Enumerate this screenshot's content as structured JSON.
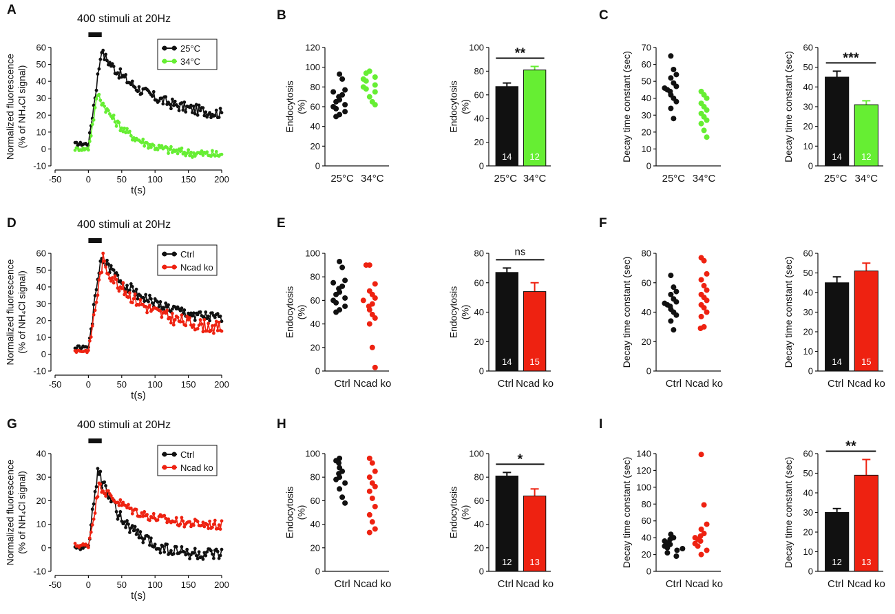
{
  "colors": {
    "black": "#111111",
    "green": "#66ee33",
    "red": "#ee2211"
  },
  "chart_data": [
    {
      "id": "A",
      "type": "line",
      "title": "400 stimuli at 20Hz",
      "xlabel": "t(s)",
      "ylabel": [
        "Normalized fluorescence",
        "(% of NH₄Cl signal)"
      ],
      "xlim": [
        -50,
        200
      ],
      "ylim": [
        -10,
        60
      ],
      "xticks": [
        -50,
        0,
        50,
        100,
        150,
        200
      ],
      "yticks": [
        -10,
        0,
        10,
        20,
        30,
        40,
        50,
        60
      ],
      "stim_bar": [
        0,
        20
      ],
      "legend": "top-right",
      "series": [
        {
          "name": "25°C",
          "color": "#111111",
          "peak": 60,
          "tpeak": 20,
          "baseline": 3,
          "end": 18,
          "tau": 70,
          "noise": 3.2
        },
        {
          "name": "34°C",
          "color": "#66ee33",
          "peak": 35,
          "tpeak": 15,
          "baseline": 0,
          "end": -4,
          "tau": 45,
          "noise": 2.5
        }
      ]
    },
    {
      "id": "B1",
      "type": "scatter",
      "ylabel": [
        "Endocytosis",
        "(%)"
      ],
      "ylim": [
        0,
        120
      ],
      "yticks": [
        0,
        20,
        40,
        60,
        80,
        100,
        120
      ],
      "categories": [
        "25°C",
        "34°C"
      ],
      "series": [
        {
          "name": "25°C",
          "color": "#111111",
          "values": [
            93,
            88,
            77,
            75,
            72,
            70,
            67,
            65,
            62,
            60,
            58,
            55,
            52,
            50
          ]
        },
        {
          "name": "34°C",
          "color": "#66ee33",
          "values": [
            96,
            94,
            90,
            88,
            86,
            82,
            80,
            78,
            75,
            70,
            65,
            62
          ]
        }
      ]
    },
    {
      "id": "B2",
      "type": "bar",
      "ylabel": [
        "Endocytosis",
        "(%)"
      ],
      "ylim": [
        0,
        100
      ],
      "yticks": [
        0,
        20,
        40,
        60,
        80,
        100
      ],
      "categories": [
        "25°C",
        "34°C"
      ],
      "values": [
        67,
        81
      ],
      "errors": [
        3,
        3
      ],
      "n": [
        "14",
        "12"
      ],
      "colors": [
        "#111111",
        "#66ee33"
      ],
      "significance": "**"
    },
    {
      "id": "C1",
      "type": "scatter",
      "ylabel": [
        "Decay time constant (sec)"
      ],
      "ylim": [
        0,
        70
      ],
      "yticks": [
        0,
        10,
        20,
        30,
        40,
        50,
        60,
        70
      ],
      "categories": [
        "25°C",
        "34°C"
      ],
      "series": [
        {
          "name": "25°C",
          "color": "#111111",
          "values": [
            65,
            57,
            54,
            52,
            49,
            47,
            46,
            45,
            44,
            42,
            40,
            38,
            34,
            28
          ]
        },
        {
          "name": "34°C",
          "color": "#66ee33",
          "values": [
            44,
            42,
            40,
            37,
            35,
            33,
            31,
            29,
            27,
            25,
            21,
            17
          ]
        }
      ]
    },
    {
      "id": "C2",
      "type": "bar",
      "ylabel": [
        "Decay time constant (sec)"
      ],
      "ylim": [
        0,
        60
      ],
      "yticks": [
        0,
        10,
        20,
        30,
        40,
        50,
        60
      ],
      "categories": [
        "25°C",
        "34°C"
      ],
      "values": [
        45,
        31
      ],
      "errors": [
        3,
        2
      ],
      "n": [
        "14",
        "12"
      ],
      "colors": [
        "#111111",
        "#66ee33"
      ],
      "significance": "***"
    },
    {
      "id": "D",
      "type": "line",
      "title": "400 stimuli at 20Hz",
      "xlabel": "t(s)",
      "ylabel": [
        "Normalized fluorescence",
        "(% of NH₄Cl signal)"
      ],
      "xlim": [
        -50,
        200
      ],
      "ylim": [
        -10,
        60
      ],
      "xticks": [
        -50,
        0,
        50,
        100,
        150,
        200
      ],
      "yticks": [
        -10,
        0,
        10,
        20,
        30,
        40,
        50,
        60
      ],
      "stim_bar": [
        0,
        20
      ],
      "legend": "top-right",
      "series": [
        {
          "name": "Ctrl",
          "color": "#111111",
          "peak": 60,
          "tpeak": 20,
          "baseline": 4,
          "end": 18,
          "tau": 70,
          "noise": 3.2
        },
        {
          "name": "Ncad ko",
          "color": "#ee2211",
          "peak": 57,
          "tpeak": 22,
          "baseline": 2,
          "end": 13,
          "tau": 65,
          "noise": 3.8
        }
      ]
    },
    {
      "id": "E1",
      "type": "scatter",
      "ylabel": [
        "Endocytosis",
        "(%)"
      ],
      "ylim": [
        0,
        100
      ],
      "yticks": [
        0,
        20,
        40,
        60,
        80,
        100
      ],
      "categories": [
        "Ctrl",
        "Ncad ko"
      ],
      "series": [
        {
          "name": "Ctrl",
          "color": "#111111",
          "values": [
            93,
            88,
            77,
            75,
            72,
            70,
            67,
            65,
            62,
            60,
            58,
            55,
            52,
            50
          ]
        },
        {
          "name": "Ncad ko",
          "color": "#ee2211",
          "values": [
            90,
            90,
            74,
            68,
            65,
            62,
            60,
            57,
            55,
            52,
            48,
            45,
            40,
            20,
            3
          ]
        }
      ]
    },
    {
      "id": "E2",
      "type": "bar",
      "ylabel": [
        "Endocytosis",
        "(%)"
      ],
      "ylim": [
        0,
        80
      ],
      "yticks": [
        0,
        20,
        40,
        60,
        80
      ],
      "categories": [
        "Ctrl",
        "Ncad ko"
      ],
      "values": [
        67,
        54
      ],
      "errors": [
        3,
        6
      ],
      "n": [
        "14",
        "15"
      ],
      "colors": [
        "#111111",
        "#ee2211"
      ],
      "significance": "ns"
    },
    {
      "id": "F1",
      "type": "scatter",
      "ylabel": [
        "Decay time constant (sec)"
      ],
      "ylim": [
        0,
        80
      ],
      "yticks": [
        0,
        20,
        40,
        60,
        80
      ],
      "categories": [
        "Ctrl",
        "Ncad ko"
      ],
      "series": [
        {
          "name": "Ctrl",
          "color": "#111111",
          "values": [
            65,
            57,
            54,
            52,
            49,
            47,
            46,
            45,
            44,
            42,
            40,
            38,
            34,
            28
          ]
        },
        {
          "name": "Ncad ko",
          "color": "#ee2211",
          "values": [
            77,
            75,
            66,
            62,
            58,
            55,
            52,
            50,
            48,
            45,
            43,
            40,
            37,
            30,
            29
          ]
        }
      ]
    },
    {
      "id": "F2",
      "type": "bar",
      "ylabel": [
        "Decay time constant (sec)"
      ],
      "ylim": [
        0,
        60
      ],
      "yticks": [
        0,
        10,
        20,
        30,
        40,
        50,
        60
      ],
      "categories": [
        "Ctrl",
        "Ncad ko"
      ],
      "values": [
        45,
        51
      ],
      "errors": [
        3,
        4
      ],
      "n": [
        "14",
        "15"
      ],
      "colors": [
        "#111111",
        "#ee2211"
      ],
      "significance": ""
    },
    {
      "id": "G",
      "type": "line",
      "title": "400 stimuli at 20Hz",
      "xlabel": "t(s)",
      "ylabel": [
        "Normalized fluorescence",
        "(% of NH₄Cl signal)"
      ],
      "xlim": [
        -50,
        200
      ],
      "ylim": [
        -10,
        40
      ],
      "xticks": [
        -50,
        0,
        50,
        100,
        150,
        200
      ],
      "yticks": [
        -10,
        0,
        10,
        20,
        30,
        40
      ],
      "stim_bar": [
        0,
        20
      ],
      "legend": "top-right",
      "series": [
        {
          "name": "Ctrl",
          "color": "#111111",
          "peak": 35,
          "tpeak": 15,
          "baseline": 0,
          "end": -4,
          "tau": 45,
          "noise": 2.8
        },
        {
          "name": "Ncad ko",
          "color": "#ee2211",
          "peak": 29,
          "tpeak": 18,
          "baseline": 1,
          "end": 9,
          "tau": 55,
          "noise": 2.0
        }
      ]
    },
    {
      "id": "H1",
      "type": "scatter",
      "ylabel": [
        "Endocytosis",
        "(%)"
      ],
      "ylim": [
        0,
        100
      ],
      "yticks": [
        0,
        20,
        40,
        60,
        80,
        100
      ],
      "categories": [
        "Ctrl",
        "Ncad ko"
      ],
      "series": [
        {
          "name": "Ctrl",
          "color": "#111111",
          "values": [
            96,
            94,
            92,
            88,
            85,
            83,
            80,
            78,
            75,
            70,
            63,
            58
          ]
        },
        {
          "name": "Ncad ko",
          "color": "#ee2211",
          "values": [
            96,
            92,
            85,
            80,
            75,
            72,
            68,
            62,
            55,
            48,
            42,
            36,
            33
          ]
        }
      ]
    },
    {
      "id": "H2",
      "type": "bar",
      "ylabel": [
        "Endocytosis",
        "(%)"
      ],
      "ylim": [
        0,
        100
      ],
      "yticks": [
        0,
        20,
        40,
        60,
        80,
        100
      ],
      "categories": [
        "Ctrl",
        "Ncad ko"
      ],
      "values": [
        81,
        64
      ],
      "errors": [
        3,
        6
      ],
      "n": [
        "12",
        "13"
      ],
      "colors": [
        "#111111",
        "#ee2211"
      ],
      "significance": "*"
    },
    {
      "id": "I1",
      "type": "scatter",
      "ylabel": [
        "Decay time constant (sec)"
      ],
      "ylim": [
        0,
        140
      ],
      "yticks": [
        0,
        20,
        40,
        60,
        80,
        100,
        120,
        140
      ],
      "categories": [
        "Ctrl",
        "Ncad ko"
      ],
      "series": [
        {
          "name": "Ctrl",
          "color": "#111111",
          "values": [
            44,
            40,
            38,
            36,
            34,
            32,
            30,
            28,
            27,
            25,
            22,
            18
          ]
        },
        {
          "name": "Ncad ko",
          "color": "#ee2211",
          "values": [
            139,
            79,
            56,
            50,
            45,
            42,
            40,
            38,
            36,
            33,
            30,
            25,
            20
          ]
        }
      ]
    },
    {
      "id": "I2",
      "type": "bar",
      "ylabel": [
        "Decay time constant (sec)"
      ],
      "ylim": [
        0,
        60
      ],
      "yticks": [
        0,
        10,
        20,
        30,
        40,
        50,
        60
      ],
      "categories": [
        "Ctrl",
        "Ncad ko"
      ],
      "values": [
        30,
        49
      ],
      "errors": [
        2,
        8
      ],
      "n": [
        "12",
        "13"
      ],
      "colors": [
        "#111111",
        "#ee2211"
      ],
      "significance": "**"
    }
  ],
  "panel_letters": [
    "A",
    "B",
    "C",
    "D",
    "E",
    "F",
    "G",
    "H",
    "I"
  ]
}
